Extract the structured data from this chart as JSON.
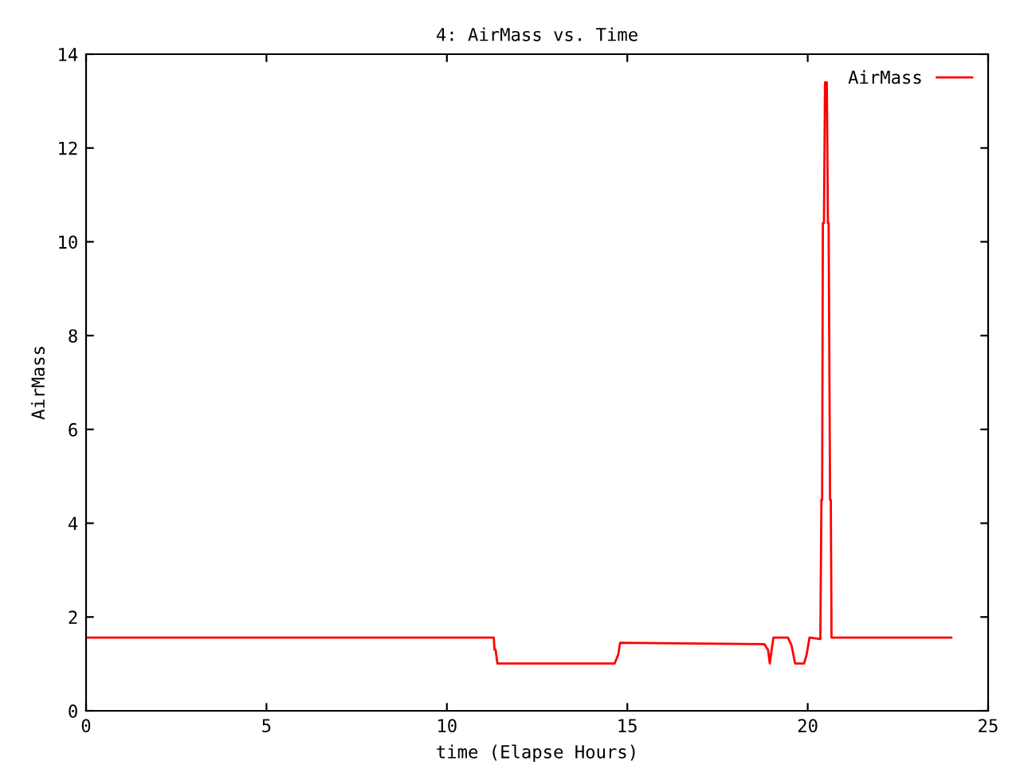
{
  "chart_data": {
    "type": "line",
    "title": "4: AirMass vs. Time",
    "xlabel": "time (Elapse Hours)",
    "ylabel": "AirMass",
    "xlim": [
      0,
      25
    ],
    "xticks": [
      0,
      5,
      10,
      15,
      20,
      25
    ],
    "ylim": [
      0,
      14
    ],
    "yticks": [
      0,
      2,
      4,
      6,
      8,
      10,
      12,
      14
    ],
    "grid": false,
    "legend": "top right",
    "marker": "none",
    "line_style": "solid",
    "series": [
      {
        "name": "AirMass",
        "color": "#ff0000",
        "x": [
          0.05,
          11.3,
          11.32,
          11.35,
          11.4,
          14.65,
          14.75,
          14.8,
          18.8,
          18.9,
          18.95,
          19.0,
          19.05,
          19.45,
          19.55,
          19.65,
          19.9,
          19.97,
          20.05,
          20.35,
          20.38,
          20.4,
          20.42,
          20.45,
          20.48,
          20.53,
          20.56,
          20.58,
          20.62,
          20.64,
          20.66,
          23.98
        ],
        "values": [
          1.56,
          1.56,
          1.3,
          1.3,
          1.01,
          1.01,
          1.2,
          1.45,
          1.42,
          1.3,
          1.01,
          1.3,
          1.56,
          1.56,
          1.4,
          1.01,
          1.01,
          1.2,
          1.56,
          1.53,
          4.5,
          4.5,
          10.4,
          10.4,
          13.4,
          13.4,
          10.4,
          10.4,
          4.5,
          4.5,
          1.56,
          1.56
        ]
      }
    ]
  }
}
